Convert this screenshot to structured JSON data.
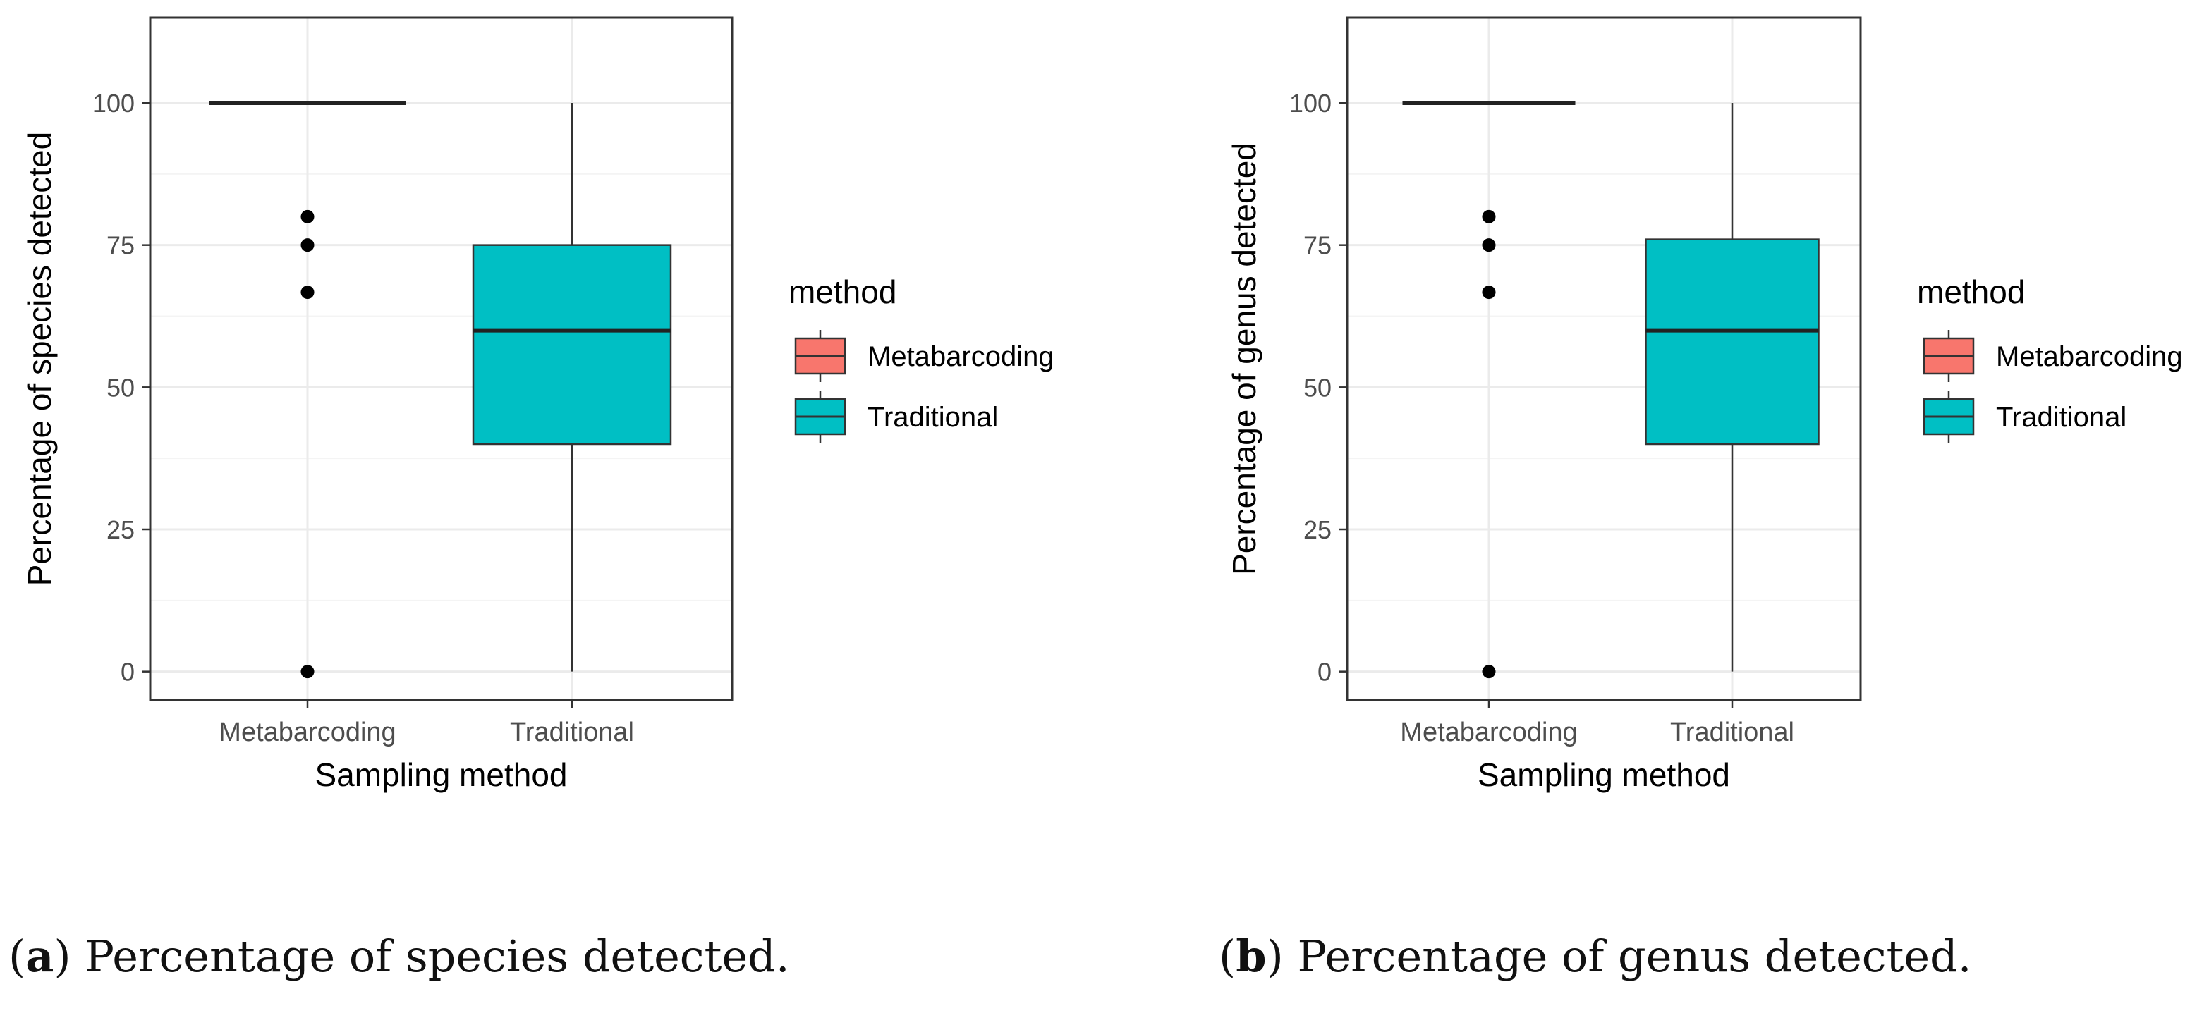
{
  "chart_data": [
    {
      "type": "boxplot",
      "panel": "a",
      "ylabel": "Percentage of species detected",
      "xlabel": "Sampling method",
      "categories": [
        "Metabarcoding",
        "Traditional"
      ],
      "ylim": [
        -5,
        115
      ],
      "yticks": [
        0,
        25,
        50,
        75,
        100
      ],
      "grid": true,
      "legend": {
        "title": "method",
        "position": "right",
        "entries": [
          "Metabarcoding",
          "Traditional"
        ]
      },
      "series": [
        {
          "name": "Metabarcoding",
          "color": "#F8766D",
          "min": 100,
          "q1": 100,
          "median": 100,
          "q3": 100,
          "max": 100,
          "outliers": [
            80,
            75,
            66.7,
            0
          ]
        },
        {
          "name": "Traditional",
          "color": "#00BFC4",
          "min": 0,
          "q1": 40,
          "median": 60,
          "q3": 75,
          "max": 100,
          "outliers": []
        }
      ],
      "caption_label": "a",
      "caption_text": "Percentage of species detected."
    },
    {
      "type": "boxplot",
      "panel": "b",
      "ylabel": "Percentage of genus detected",
      "xlabel": "Sampling method",
      "categories": [
        "Metabarcoding",
        "Traditional"
      ],
      "ylim": [
        -5,
        115
      ],
      "yticks": [
        0,
        25,
        50,
        75,
        100
      ],
      "grid": true,
      "legend": {
        "title": "method",
        "position": "right",
        "entries": [
          "Metabarcoding",
          "Traditional"
        ]
      },
      "series": [
        {
          "name": "Metabarcoding",
          "color": "#F8766D",
          "min": 100,
          "q1": 100,
          "median": 100,
          "q3": 100,
          "max": 100,
          "outliers": [
            80,
            75,
            66.7,
            0
          ]
        },
        {
          "name": "Traditional",
          "color": "#00BFC4",
          "min": 0,
          "q1": 40,
          "median": 60,
          "q3": 76,
          "max": 100,
          "outliers": []
        }
      ],
      "caption_label": "b",
      "caption_text": "Percentage of genus detected."
    }
  ]
}
